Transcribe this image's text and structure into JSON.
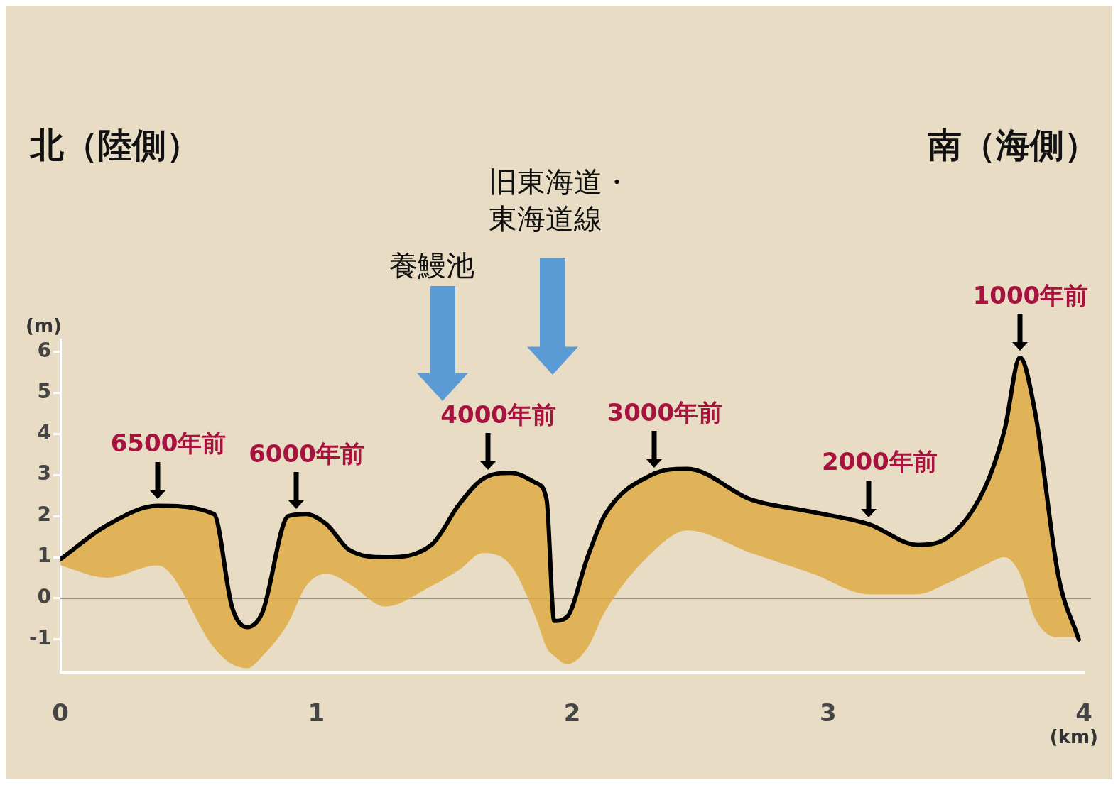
{
  "chart_data": {
    "type": "line",
    "xlabel": "(km)",
    "ylabel": "(m)",
    "x": [
      0,
      0.18,
      0.38,
      0.6,
      0.67,
      0.73,
      0.79,
      0.89,
      0.96,
      1.04,
      1.13,
      1.27,
      1.45,
      1.56,
      1.65,
      1.76,
      1.86,
      1.9,
      1.93,
      1.98,
      2.06,
      2.13,
      2.31,
      2.45,
      2.7,
      2.94,
      3.16,
      3.35,
      3.46,
      3.61,
      3.69,
      3.75,
      3.81,
      3.9,
      3.98
    ],
    "series": [
      {
        "color": "#000000",
        "values": [
          0.95,
          1.77,
          2.25,
          2.05,
          -0.2,
          -0.7,
          -0.33,
          2.0,
          2.05,
          1.8,
          1.17,
          1.0,
          1.3,
          2.3,
          2.9,
          3.05,
          2.8,
          2.4,
          -0.55,
          -0.45,
          1.0,
          2.05,
          3.0,
          3.15,
          2.4,
          2.1,
          1.8,
          1.3,
          1.45,
          2.65,
          4.1,
          5.85,
          4.5,
          0.55,
          -1.0
        ],
        "upper": [
          0.95,
          1.77,
          2.25,
          2.05,
          -0.2,
          -0.7,
          -0.33,
          2.0,
          2.05,
          1.8,
          1.17,
          1.0,
          1.3,
          2.3,
          2.9,
          3.05,
          2.8,
          2.4,
          -0.55,
          -0.45,
          1.0,
          2.05,
          3.0,
          3.15,
          2.4,
          2.1,
          1.8,
          1.3,
          1.45,
          2.65,
          4.1,
          5.85,
          4.5,
          0.55,
          -1.0
        ],
        "lower": [
          0.8,
          0.5,
          0.8,
          -1.2,
          -1.6,
          -1.7,
          -1.4,
          -0.6,
          0.3,
          0.6,
          0.35,
          -0.2,
          0.3,
          0.7,
          1.1,
          0.8,
          -0.5,
          -1.2,
          -1.4,
          -1.6,
          -1.2,
          -0.3,
          1.1,
          1.65,
          1.1,
          0.6,
          0.1,
          0.1,
          0.35,
          0.8,
          1.0,
          0.6,
          -0.5,
          -0.95,
          -0.95
        ]
      }
    ],
    "xlim": [
      0,
      4
    ],
    "xticks": [
      0,
      1,
      2,
      3,
      4
    ],
    "ylim": [
      -1.8,
      6.3
    ],
    "yticks": [
      -1,
      0,
      1,
      2,
      3,
      4,
      5,
      6
    ],
    "grid": false,
    "legend": false,
    "marker": "none",
    "ref_lines": [
      {
        "axis": "y",
        "value": 0,
        "color": "#9a9080"
      }
    ],
    "annotations": [
      "北（陸側）",
      "南（海側）",
      {
        "text": "6500年前",
        "x": 0.38,
        "y": 2.25
      },
      {
        "text": "6000年前",
        "x": 0.92,
        "y": 2.0
      },
      "養鰻池",
      {
        "text": "4000年前",
        "x": 1.67,
        "y": 2.95
      },
      "旧東海道・東海道線",
      {
        "text": "3000年前",
        "x": 2.32,
        "y": 3.0
      },
      {
        "text": "2000年前",
        "x": 3.16,
        "y": 1.8
      },
      {
        "text": "1000年前",
        "x": 3.75,
        "y": 5.85
      }
    ]
  }
}
